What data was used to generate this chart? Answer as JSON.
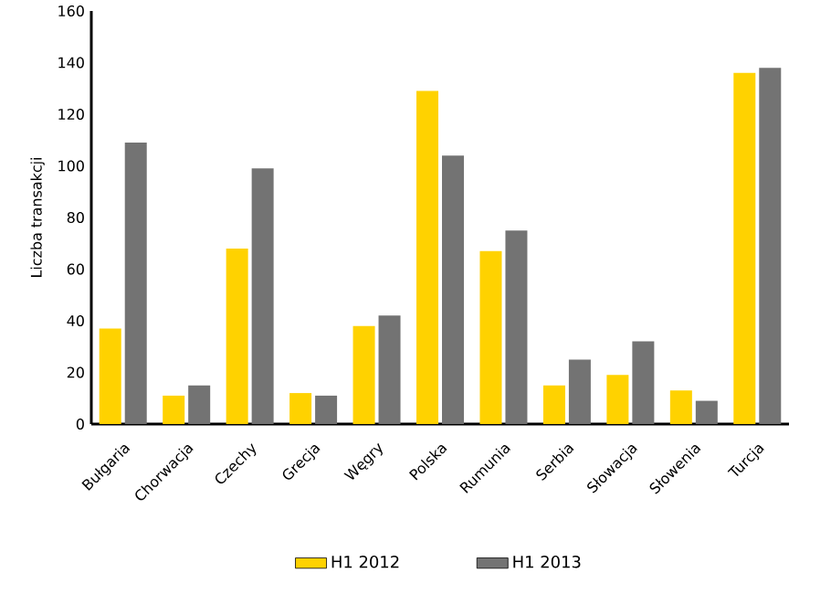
{
  "chart_data": {
    "type": "bar",
    "ylabel": "Liczba transakcji",
    "categories": [
      "Bułgaria",
      "Chorwacja",
      "Czechy",
      "Grecja",
      "Węgry",
      "Polska",
      "Rumunia",
      "Serbia",
      "Słowacja",
      "Słowenia",
      "Turcja"
    ],
    "series": [
      {
        "name": "H1 2012",
        "color": "#ffd200",
        "values": [
          37,
          11,
          68,
          12,
          38,
          129,
          67,
          15,
          19,
          13,
          136
        ]
      },
      {
        "name": "H1 2013",
        "color": "#737373",
        "values": [
          109,
          15,
          99,
          11,
          42,
          104,
          75,
          25,
          32,
          9,
          138
        ]
      }
    ],
    "ylim": [
      0,
      160
    ],
    "yticks": [
      0,
      20,
      40,
      60,
      80,
      100,
      120,
      140,
      160
    ],
    "grid": false,
    "legend": "bottom"
  }
}
